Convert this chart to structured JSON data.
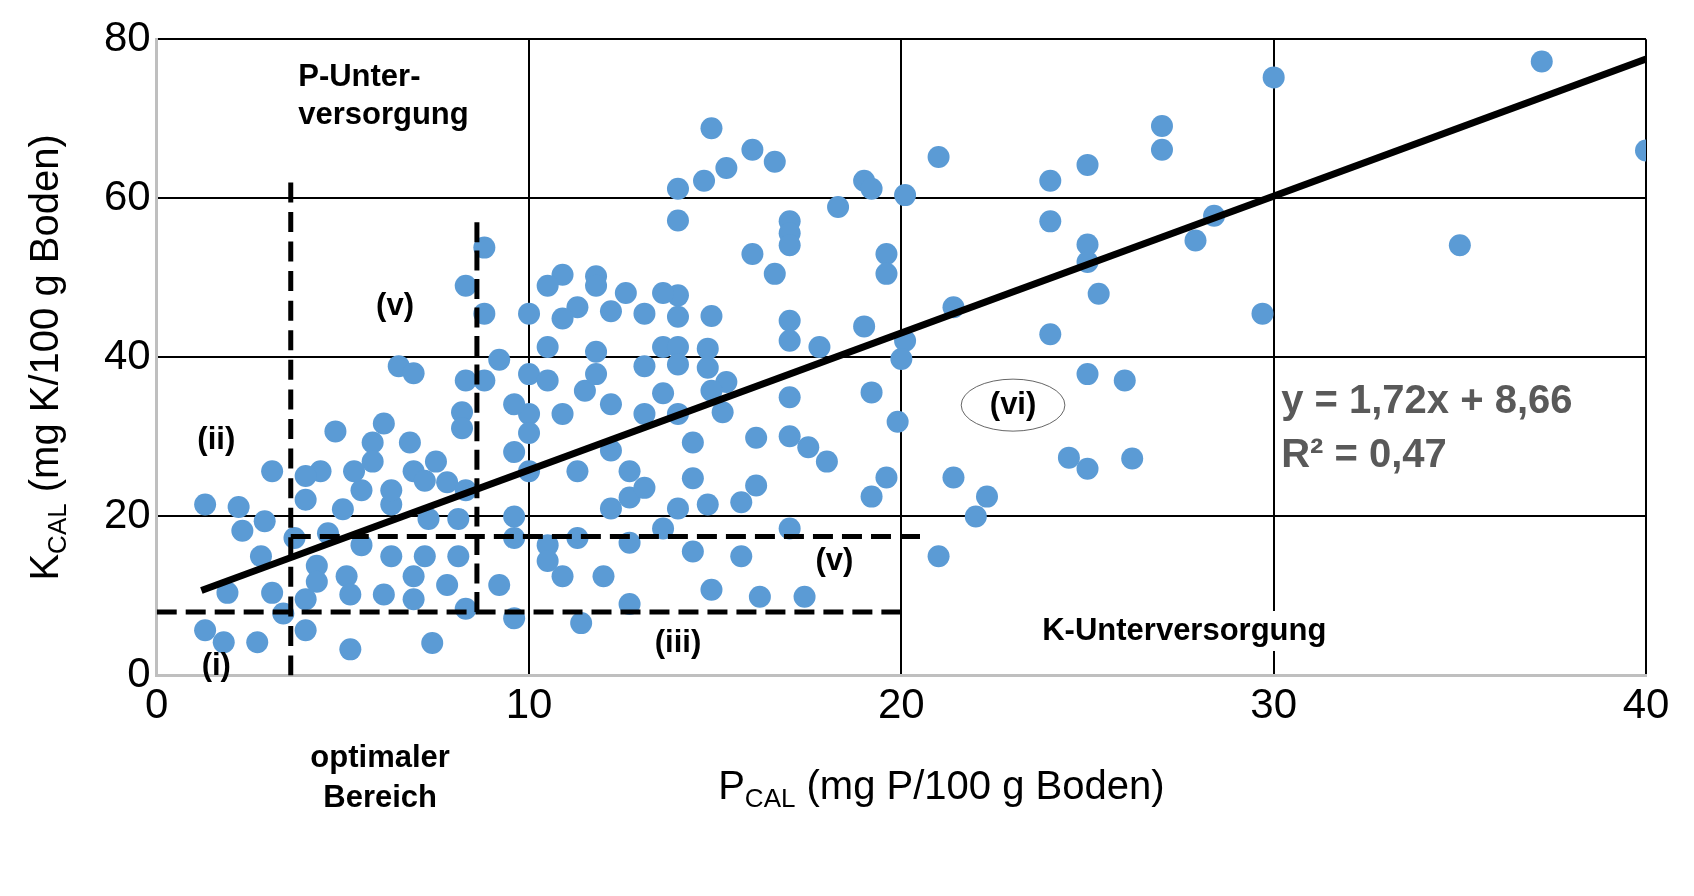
{
  "chart_data": {
    "type": "scatter",
    "xlabel": "P$_{CAL}$ (mg P/100 g Boden)",
    "ylabel": "K$_{CAL}$ (mg K/100 g Boden)",
    "xlim": [
      0,
      40
    ],
    "xticks": [
      0,
      10,
      20,
      30,
      40
    ],
    "ylim": [
      0,
      80
    ],
    "yticks": [
      0,
      20,
      40,
      60,
      80
    ],
    "grid": true,
    "legend": false,
    "marker": "circle",
    "series": [
      {
        "type": "scatter",
        "color": "#5b9bd5",
        "x": [
          14.9,
          16.0,
          16.6,
          15.3,
          14.7,
          14.0,
          14.0,
          21.0,
          20.1,
          19.0,
          19.2,
          18.3,
          17.0,
          17.0,
          17.0,
          16.0,
          16.6,
          19.6,
          19.6,
          30.0,
          37.2,
          40.0,
          27.0,
          27.0,
          25.0,
          24.0,
          24.0,
          25.0,
          25.0,
          25.3,
          27.9,
          28.4,
          29.7,
          35.0,
          24.0,
          25.0,
          26.0,
          24.5,
          25.0,
          26.2,
          21.4,
          20.1,
          20.0,
          19.9,
          19.2,
          19.0,
          19.6,
          19.2,
          21.4,
          22.3,
          22.0,
          21.0,
          17.8,
          17.0,
          17.0,
          17.0,
          17.0,
          17.5,
          18.0,
          16.1,
          16.1,
          15.7,
          17.0,
          14.9,
          14.8,
          14.8,
          15.3,
          14.9,
          15.2,
          14.4,
          14.4,
          14.8,
          14.0,
          14.0,
          13.6,
          12.2,
          12.6,
          13.1,
          11.8,
          11.8,
          10.9,
          10.5,
          11.3,
          10.9,
          10.0,
          8.3,
          8.8,
          8.8,
          8.3,
          8.8,
          9.2,
          10.5,
          10.0,
          10.5,
          11.5,
          11.8,
          11.8,
          13.1,
          13.6,
          14.0,
          14.0,
          13.6,
          12.2,
          13.1,
          14.0,
          10.0,
          10.9,
          9.6,
          8.2,
          8.2,
          10.0,
          9.6,
          10.0,
          11.3,
          12.2,
          12.7,
          12.7,
          13.1,
          14.0,
          13.6,
          12.2,
          11.3,
          10.5,
          9.6,
          9.6,
          10.5,
          10.9,
          12.0,
          12.7,
          14.4,
          15.7,
          14.9,
          16.2,
          17.4,
          12.7,
          11.4,
          9.2,
          9.6,
          8.3,
          1.3,
          2.2,
          3.1,
          2.3,
          2.8,
          1.9,
          3.1,
          1.3,
          1.8,
          2.7,
          4.0,
          3.4,
          5.2,
          7.4,
          4.0,
          4.4,
          4.8,
          6.5,
          6.9,
          6.1,
          5.8,
          5.8,
          6.8,
          6.9,
          7.5,
          7.8,
          8.3,
          5.5,
          5.0,
          6.3,
          7.3,
          8.1,
          4.6,
          5.5,
          6.3,
          7.2,
          8.1,
          4.3,
          5.1,
          6.9,
          7.8,
          4.0,
          5.2,
          6.1,
          6.9,
          4.3,
          3.7,
          4.0,
          6.3,
          7.2,
          5.3,
          2.9
        ],
        "values": [
          68.8,
          66.1,
          64.6,
          63.8,
          62.2,
          61.2,
          57.2,
          65.2,
          60.4,
          62.2,
          61.2,
          58.9,
          57.1,
          55.6,
          54.1,
          53.0,
          50.5,
          53.0,
          50.5,
          75.2,
          77.2,
          66.0,
          69.1,
          66.1,
          64.2,
          62.2,
          57.1,
          54.2,
          52.0,
          48.0,
          54.7,
          57.8,
          45.5,
          54.1,
          42.9,
          37.9,
          37.1,
          27.4,
          26.0,
          27.3,
          46.3,
          42.1,
          39.8,
          31.9,
          35.6,
          43.9,
          24.9,
          22.5,
          24.9,
          22.5,
          20.0,
          15.0,
          41.3,
          44.6,
          42.1,
          35.0,
          30.1,
          28.7,
          26.9,
          29.9,
          23.9,
          21.8,
          18.5,
          45.2,
          41.1,
          38.7,
          36.9,
          35.8,
          33.1,
          29.3,
          24.8,
          21.5,
          47.8,
          45.1,
          48.1,
          45.8,
          48.1,
          45.5,
          50.2,
          49.0,
          50.4,
          49.0,
          46.3,
          44.9,
          45.5,
          49.0,
          53.8,
          45.5,
          37.1,
          37.1,
          39.7,
          41.3,
          37.9,
          37.1,
          35.8,
          37.9,
          40.7,
          38.9,
          41.3,
          41.3,
          39.1,
          35.5,
          34.1,
          32.9,
          32.9,
          32.9,
          32.9,
          34.1,
          33.1,
          31.1,
          30.5,
          28.1,
          25.7,
          25.7,
          28.3,
          25.7,
          22.4,
          23.6,
          21.0,
          18.5,
          21.0,
          17.3,
          16.4,
          20.0,
          17.3,
          14.4,
          12.5,
          12.5,
          16.7,
          15.6,
          15.0,
          10.8,
          9.9,
          9.9,
          9.0,
          6.6,
          11.4,
          7.2,
          8.4,
          21.5,
          21.2,
          25.7,
          18.2,
          15.0,
          10.4,
          10.4,
          5.7,
          4.2,
          4.2,
          5.7,
          7.8,
          3.3,
          4.1,
          22.1,
          25.7,
          30.7,
          38.9,
          38.0,
          31.7,
          29.3,
          26.9,
          29.3,
          25.7,
          26.9,
          24.3,
          23.3,
          23.3,
          20.9,
          21.5,
          19.7,
          19.7,
          17.9,
          16.4,
          15.0,
          15.0,
          15.0,
          13.8,
          12.5,
          12.5,
          11.4,
          9.6,
          10.2,
          10.2,
          9.6,
          11.8,
          17.3,
          25.1,
          23.3,
          24.5,
          25.7,
          19.4
        ]
      },
      {
        "type": "line",
        "color": "#000000",
        "marker": "none",
        "line_style": "solid",
        "x": [
          1.2,
          40
        ],
        "values": [
          10.7,
          77.5
        ]
      },
      {
        "type": "line",
        "color": "#000000",
        "marker": "none",
        "line_style": "dashed",
        "x": [
          3.6,
          3.6
        ],
        "values": [
          0,
          62
        ]
      },
      {
        "type": "line",
        "color": "#000000",
        "marker": "none",
        "line_style": "dashed",
        "x": [
          8.6,
          8.6
        ],
        "values": [
          57,
          8
        ]
      },
      {
        "type": "line",
        "color": "#000000",
        "marker": "none",
        "line_style": "dashed",
        "x": [
          0,
          20
        ],
        "values": [
          8,
          8
        ]
      },
      {
        "type": "line",
        "color": "#000000",
        "marker": "none",
        "line_style": "dashed",
        "x": [
          3.6,
          20.5
        ],
        "values": [
          17.5,
          17.5
        ]
      }
    ],
    "annotations": [
      "P-Unter-versorgung",
      "K-Unterversorgung",
      "(i)",
      "(ii)",
      "(iii)",
      "(v)",
      "(v)",
      "(vi)",
      "y = 1,72x + 8,66",
      "R² = 0,47",
      "optimaler Bereich"
    ]
  }
}
